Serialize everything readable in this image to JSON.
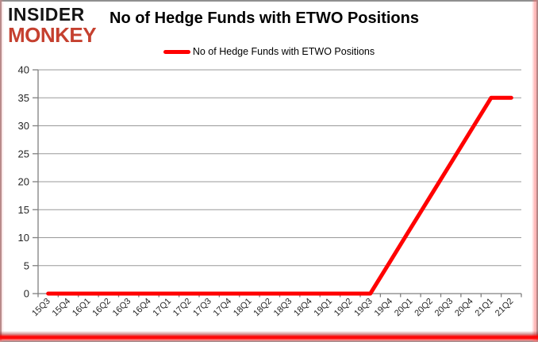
{
  "header": {
    "logo_line1": "INSIDER",
    "logo_line2": "MONKEY",
    "title": "No of Hedge Funds with ETWO Positions"
  },
  "legend": {
    "label": "No of Hedge Funds with ETWO Positions",
    "line_color": "#ff0000"
  },
  "chart_data": {
    "type": "line",
    "title": "No of Hedge Funds with ETWO Positions",
    "categories": [
      "15Q3",
      "15Q4",
      "16Q1",
      "16Q2",
      "16Q3",
      "16Q4",
      "17Q1",
      "17Q2",
      "17Q3",
      "17Q4",
      "18Q1",
      "18Q2",
      "18Q3",
      "18Q4",
      "19Q1",
      "19Q2",
      "19Q3",
      "19Q4",
      "20Q1",
      "20Q2",
      "20Q3",
      "20Q4",
      "21Q1",
      "21Q2"
    ],
    "series": [
      {
        "name": "No of Hedge Funds with ETWO Positions",
        "color": "#ff0000",
        "values": [
          0,
          0,
          0,
          0,
          0,
          0,
          0,
          0,
          0,
          0,
          0,
          0,
          0,
          0,
          0,
          0,
          0,
          5.83,
          11.67,
          17.5,
          23.33,
          29.17,
          35,
          35
        ]
      }
    ],
    "ylim": [
      0,
      40
    ],
    "yticks": [
      0,
      5,
      10,
      15,
      20,
      25,
      30,
      35,
      40
    ],
    "xlabel": "",
    "ylabel": "",
    "grid": "horizontal",
    "legend_position": "top-center"
  },
  "colors": {
    "accent_red": "#ff0000",
    "logo_red": "#c5402f",
    "logo_black": "#141414",
    "gridline": "#999999",
    "axis": "#808080",
    "tick_text": "#262626",
    "frame_gray": "#8f8f8f",
    "background": "#ffffff"
  }
}
